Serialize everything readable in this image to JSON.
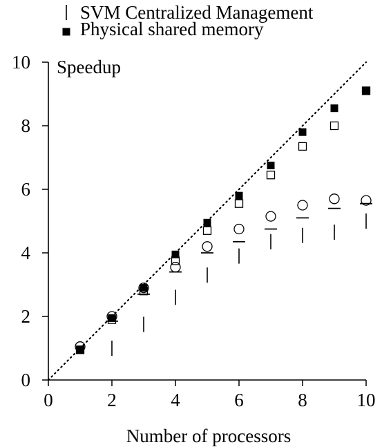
{
  "chart_data": {
    "type": "scatter",
    "title": "",
    "xlabel": "Number of processors",
    "ylabel": "Speedup",
    "xlim": [
      0,
      10
    ],
    "ylim": [
      0,
      10
    ],
    "x_ticks": [
      "0",
      "2",
      "4",
      "6",
      "8",
      "10"
    ],
    "y_ticks": [
      "0",
      "2",
      "4",
      "6",
      "8",
      "10"
    ],
    "grid": false,
    "legend_position": "top",
    "legend": [
      {
        "name": "SVM Centralized Management",
        "marker": "vertical-tick"
      },
      {
        "name": "Physical shared memory",
        "marker": "filled-square"
      }
    ],
    "reference_line": {
      "style": "dotted",
      "x": [
        0,
        10
      ],
      "y": [
        0,
        10
      ]
    },
    "series": [
      {
        "name": "SVM Centralized Management",
        "marker": "vertical-tick",
        "x": [
          2,
          3,
          4,
          5,
          6,
          7,
          8,
          9,
          10
        ],
        "y": [
          1.0,
          1.75,
          2.6,
          3.3,
          3.9,
          4.35,
          4.55,
          4.65,
          5.0
        ]
      },
      {
        "name": "Physical shared memory",
        "marker": "filled-square",
        "x": [
          1,
          2,
          3,
          4,
          5,
          6,
          7,
          8,
          9,
          10
        ],
        "y": [
          0.95,
          1.95,
          2.9,
          3.95,
          4.95,
          5.8,
          6.75,
          7.8,
          8.55,
          9.1
        ]
      },
      {
        "marker": "open-square",
        "x": [
          1,
          2,
          3,
          4,
          5,
          6,
          7,
          8,
          9,
          10
        ],
        "y": [
          0.95,
          1.9,
          2.8,
          3.75,
          4.7,
          5.55,
          6.45,
          7.35,
          8.0,
          9.1
        ]
      },
      {
        "marker": "open-circle",
        "x": [
          1,
          2,
          3,
          4,
          5,
          6,
          7,
          8,
          9,
          10
        ],
        "y": [
          1.05,
          2.0,
          2.9,
          3.55,
          4.2,
          4.75,
          5.15,
          5.5,
          5.7,
          5.65
        ]
      },
      {
        "marker": "horizontal-dash",
        "x": [
          2,
          3,
          4,
          5,
          6,
          7,
          8,
          9,
          10
        ],
        "y": [
          1.85,
          2.7,
          3.4,
          4.0,
          4.35,
          4.75,
          5.1,
          5.4,
          5.55
        ]
      }
    ]
  }
}
